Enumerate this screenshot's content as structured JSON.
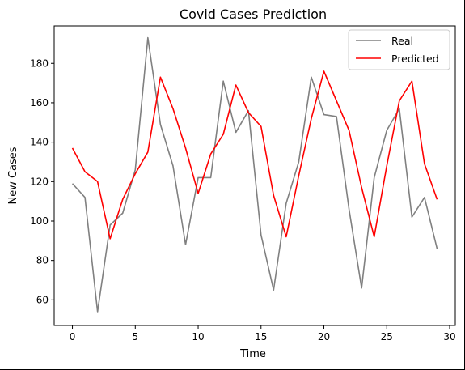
{
  "chart_data": {
    "type": "line",
    "title": "Covid Cases Prediction",
    "xlabel": "Time",
    "ylabel": "New Cases",
    "xlim": [
      -1.45,
      30.45
    ],
    "ylim": [
      47,
      199
    ],
    "xticks": [
      0,
      5,
      10,
      15,
      20,
      25,
      30
    ],
    "yticks": [
      60,
      80,
      100,
      120,
      140,
      160,
      180
    ],
    "grid": false,
    "legend_position": "top-right",
    "x": [
      0,
      1,
      2,
      3,
      4,
      5,
      6,
      7,
      8,
      9,
      10,
      11,
      12,
      13,
      14,
      15,
      16,
      17,
      18,
      19,
      20,
      21,
      22,
      23,
      24,
      25,
      26,
      27,
      28,
      29
    ],
    "series": [
      {
        "name": "Real",
        "color": "#808080",
        "values": [
          119,
          112,
          54,
          98,
          104,
          126,
          193,
          149,
          128,
          88,
          122,
          122,
          171,
          145,
          156,
          93,
          65,
          109,
          130,
          173,
          154,
          153,
          106,
          66,
          122,
          146,
          157,
          102,
          112,
          86
        ]
      },
      {
        "name": "Predicted",
        "color": "#ff0000",
        "values": [
          137,
          125,
          120,
          91,
          111,
          124,
          135,
          173,
          157,
          137,
          114,
          134,
          144,
          169,
          155,
          148,
          113,
          92,
          123,
          152,
          176,
          161,
          146,
          117,
          92,
          128,
          161,
          171,
          129,
          111
        ]
      }
    ]
  }
}
